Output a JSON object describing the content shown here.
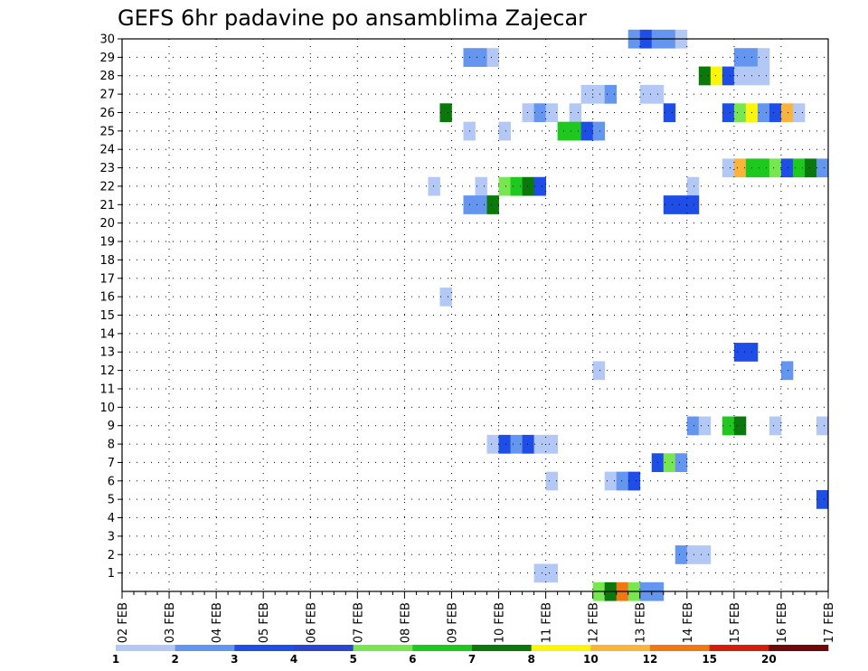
{
  "chart_data": {
    "type": "heatmap",
    "title": "GEFS 6hr padavine po ansamblima Zajecar",
    "xlabel": "",
    "ylabel": "",
    "x_tick_labels": [
      "02 FEB",
      "03 FEB",
      "04 FEB",
      "05 FEB",
      "06 FEB",
      "07 FEB",
      "08 FEB",
      "09 FEB",
      "10 FEB",
      "11 FEB",
      "12 FEB",
      "13 FEB",
      "14 FEB",
      "15 FEB",
      "16 FEB",
      "17 FEB"
    ],
    "y_tick_labels": [
      "1",
      "2",
      "3",
      "4",
      "5",
      "6",
      "7",
      "8",
      "9",
      "10",
      "11",
      "12",
      "13",
      "14",
      "15",
      "16",
      "17",
      "18",
      "19",
      "20",
      "21",
      "22",
      "23",
      "24",
      "25",
      "26",
      "27",
      "28",
      "29",
      "30"
    ],
    "xlim": [
      0,
      60
    ],
    "ylim": [
      0,
      30
    ],
    "steps_per_day": 4,
    "grid": true,
    "legend": {
      "placement": "bottom",
      "levels": [
        1,
        2,
        3,
        4,
        5,
        6,
        7,
        8,
        10,
        12,
        15,
        20
      ],
      "labels": [
        "1",
        "2",
        "3",
        "4",
        "5",
        "6",
        "7",
        "8",
        "10",
        "12",
        "15",
        "20"
      ],
      "colors": [
        "#b4c8f5",
        "#6496f0",
        "#1e4ee6",
        "#2846d2",
        "#78e650",
        "#1ec81e",
        "#0a780a",
        "#faf50a",
        "#fab43c",
        "#f07814",
        "#d21e0a",
        "#6e0a0a"
      ]
    },
    "cells": [
      {
        "member": 30,
        "step": 43,
        "level": 2
      },
      {
        "member": 30,
        "step": 44,
        "level": 3
      },
      {
        "member": 30,
        "step": 45,
        "level": 2
      },
      {
        "member": 30,
        "step": 46,
        "level": 2
      },
      {
        "member": 30,
        "step": 47,
        "level": 1
      },
      {
        "member": 29,
        "step": 29,
        "level": 2
      },
      {
        "member": 29,
        "step": 30,
        "level": 2
      },
      {
        "member": 29,
        "step": 31,
        "level": 1
      },
      {
        "member": 29,
        "step": 52,
        "level": 2
      },
      {
        "member": 29,
        "step": 53,
        "level": 2
      },
      {
        "member": 29,
        "step": 54,
        "level": 1
      },
      {
        "member": 28,
        "step": 49,
        "level": 7
      },
      {
        "member": 28,
        "step": 50,
        "level": 8
      },
      {
        "member": 28,
        "step": 51,
        "level": 3
      },
      {
        "member": 28,
        "step": 52,
        "level": 1
      },
      {
        "member": 28,
        "step": 53,
        "level": 1
      },
      {
        "member": 28,
        "step": 54,
        "level": 1
      },
      {
        "member": 27,
        "step": 39,
        "level": 1
      },
      {
        "member": 27,
        "step": 40,
        "level": 1
      },
      {
        "member": 27,
        "step": 41,
        "level": 2
      },
      {
        "member": 27,
        "step": 44,
        "level": 1
      },
      {
        "member": 27,
        "step": 45,
        "level": 1
      },
      {
        "member": 26,
        "step": 27,
        "level": 7
      },
      {
        "member": 26,
        "step": 34,
        "level": 1
      },
      {
        "member": 26,
        "step": 35,
        "level": 2
      },
      {
        "member": 26,
        "step": 36,
        "level": 1
      },
      {
        "member": 26,
        "step": 38,
        "level": 1
      },
      {
        "member": 26,
        "step": 46,
        "level": 3
      },
      {
        "member": 26,
        "step": 51,
        "level": 3
      },
      {
        "member": 26,
        "step": 52,
        "level": 5
      },
      {
        "member": 26,
        "step": 53,
        "level": 8
      },
      {
        "member": 26,
        "step": 54,
        "level": 2
      },
      {
        "member": 26,
        "step": 55,
        "level": 3
      },
      {
        "member": 26,
        "step": 56,
        "level": 10
      },
      {
        "member": 26,
        "step": 57,
        "level": 1
      },
      {
        "member": 25,
        "step": 29,
        "level": 1
      },
      {
        "member": 25,
        "step": 32,
        "level": 1
      },
      {
        "member": 25,
        "step": 37,
        "level": 6
      },
      {
        "member": 25,
        "step": 38,
        "level": 6
      },
      {
        "member": 25,
        "step": 39,
        "level": 3
      },
      {
        "member": 25,
        "step": 40,
        "level": 2
      },
      {
        "member": 23,
        "step": 51,
        "level": 1
      },
      {
        "member": 23,
        "step": 52,
        "level": 10
      },
      {
        "member": 23,
        "step": 53,
        "level": 6
      },
      {
        "member": 23,
        "step": 54,
        "level": 6
      },
      {
        "member": 23,
        "step": 55,
        "level": 5
      },
      {
        "member": 23,
        "step": 56,
        "level": 3
      },
      {
        "member": 23,
        "step": 57,
        "level": 6
      },
      {
        "member": 23,
        "step": 58,
        "level": 7
      },
      {
        "member": 23,
        "step": 59,
        "level": 2
      },
      {
        "member": 22,
        "step": 26,
        "level": 1
      },
      {
        "member": 22,
        "step": 30,
        "level": 1
      },
      {
        "member": 22,
        "step": 32,
        "level": 5
      },
      {
        "member": 22,
        "step": 33,
        "level": 6
      },
      {
        "member": 22,
        "step": 34,
        "level": 7
      },
      {
        "member": 22,
        "step": 35,
        "level": 3
      },
      {
        "member": 22,
        "step": 48,
        "level": 1
      },
      {
        "member": 21,
        "step": 29,
        "level": 2
      },
      {
        "member": 21,
        "step": 30,
        "level": 2
      },
      {
        "member": 21,
        "step": 31,
        "level": 7
      },
      {
        "member": 21,
        "step": 46,
        "level": 3
      },
      {
        "member": 21,
        "step": 47,
        "level": 3
      },
      {
        "member": 21,
        "step": 48,
        "level": 3
      },
      {
        "member": 16,
        "step": 27,
        "level": 1
      },
      {
        "member": 13,
        "step": 52,
        "level": 3
      },
      {
        "member": 13,
        "step": 53,
        "level": 3
      },
      {
        "member": 12,
        "step": 40,
        "level": 1
      },
      {
        "member": 12,
        "step": 56,
        "level": 2
      },
      {
        "member": 9,
        "step": 48,
        "level": 2
      },
      {
        "member": 9,
        "step": 49,
        "level": 1
      },
      {
        "member": 9,
        "step": 51,
        "level": 6
      },
      {
        "member": 9,
        "step": 52,
        "level": 7
      },
      {
        "member": 9,
        "step": 55,
        "level": 1
      },
      {
        "member": 9,
        "step": 59,
        "level": 1
      },
      {
        "member": 8,
        "step": 31,
        "level": 1
      },
      {
        "member": 8,
        "step": 32,
        "level": 3
      },
      {
        "member": 8,
        "step": 33,
        "level": 2
      },
      {
        "member": 8,
        "step": 34,
        "level": 3
      },
      {
        "member": 8,
        "step": 35,
        "level": 1
      },
      {
        "member": 8,
        "step": 36,
        "level": 1
      },
      {
        "member": 7,
        "step": 45,
        "level": 3
      },
      {
        "member": 7,
        "step": 46,
        "level": 5
      },
      {
        "member": 7,
        "step": 47,
        "level": 2
      },
      {
        "member": 6,
        "step": 36,
        "level": 1
      },
      {
        "member": 6,
        "step": 41,
        "level": 1
      },
      {
        "member": 6,
        "step": 42,
        "level": 2
      },
      {
        "member": 6,
        "step": 43,
        "level": 3
      },
      {
        "member": 5,
        "step": 59,
        "level": 3
      },
      {
        "member": 2,
        "step": 47,
        "level": 2
      },
      {
        "member": 2,
        "step": 48,
        "level": 1
      },
      {
        "member": 2,
        "step": 49,
        "level": 1
      },
      {
        "member": 1,
        "step": 35,
        "level": 1
      },
      {
        "member": 1,
        "step": 36,
        "level": 1
      },
      {
        "member": 0,
        "step": 40,
        "level": 5
      },
      {
        "member": 0,
        "step": 41,
        "level": 7
      },
      {
        "member": 0,
        "step": 42,
        "level": 12
      },
      {
        "member": 0,
        "step": 43,
        "level": 5
      },
      {
        "member": 0,
        "step": 44,
        "level": 2
      },
      {
        "member": 0,
        "step": 45,
        "level": 2
      }
    ]
  }
}
